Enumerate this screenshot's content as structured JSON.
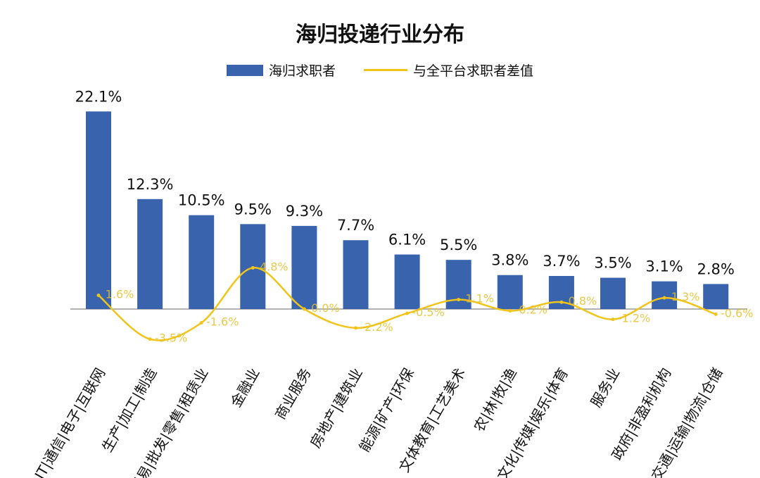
{
  "chart_data": {
    "type": "bar",
    "title": "海归投递行业分布",
    "categories": [
      "IT|通信|电子|互联网",
      "生产|加工|制造",
      "贸易|批发|零售|租赁业",
      "金融业",
      "商业服务",
      "房地产|建筑业",
      "能源|矿产|环保",
      "文体教育|工艺美术",
      "农|林|牧|渔",
      "文化|传媒|娱乐|体育",
      "服务业",
      "政府|非盈利机构",
      "交通|运输|物流|仓储"
    ],
    "series": [
      {
        "name": "海归求职者",
        "type": "bar",
        "color": "#3a63ad",
        "values": [
          22.1,
          12.3,
          10.5,
          9.5,
          9.3,
          7.7,
          6.1,
          5.5,
          3.8,
          3.7,
          3.5,
          3.1,
          2.8
        ],
        "labels": [
          "22.1%",
          "12.3%",
          "10.5%",
          "9.5%",
          "9.3%",
          "7.7%",
          "6.1%",
          "5.5%",
          "3.8%",
          "3.7%",
          "3.5%",
          "3.1%",
          "2.8%"
        ]
      },
      {
        "name": "与全平台求职者差值",
        "type": "line",
        "color": "#f0c419",
        "values": [
          1.6,
          -3.5,
          -1.6,
          4.8,
          0.0,
          -2.2,
          -0.5,
          1.1,
          -0.2,
          0.8,
          -1.2,
          1.3,
          -0.6
        ],
        "labels": [
          "1.6%",
          "-3.5%",
          "-1.6%",
          "4.8%",
          "0.0%",
          "-2.2%",
          "-0.5%",
          "1.1%",
          "-0.2%",
          "0.8%",
          "-1.2%",
          "1.3%",
          "-0.6%"
        ]
      }
    ],
    "legend": "top",
    "grid": false
  }
}
